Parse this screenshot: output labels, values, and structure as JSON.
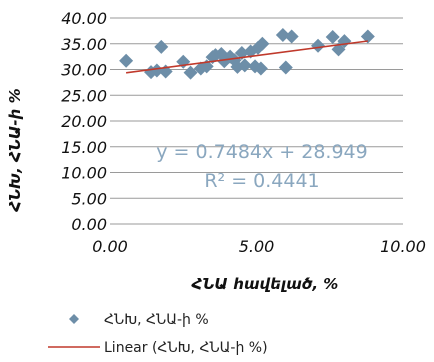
{
  "chart_data": {
    "type": "scatter",
    "xlabel": "ՀՆԱ hավելած, %",
    "ylabel": "ՀՆԽ, ՀՆԱ-ի %",
    "xlim": [
      0,
      10
    ],
    "ylim": [
      0,
      40
    ],
    "x_ticks": [
      "0.00",
      "5.00",
      "10.00"
    ],
    "y_ticks": [
      "0.00",
      "5.00",
      "10.00",
      "15.00",
      "20.00",
      "25.00",
      "30.00",
      "35.00",
      "40.00"
    ],
    "grid": "horizontal",
    "series": [
      {
        "name": "ՀՆԽ, ՀՆԱ-ի %",
        "color": "#6d8ea8",
        "marker": "diamond",
        "x": [
          0.55,
          1.4,
          1.6,
          1.75,
          1.9,
          2.5,
          2.75,
          3.1,
          3.3,
          3.5,
          3.6,
          3.8,
          3.9,
          4.1,
          4.25,
          4.35,
          4.5,
          4.6,
          4.8,
          4.95,
          5.05,
          5.15,
          5.2,
          5.9,
          6.0,
          6.2,
          7.1,
          7.6,
          7.8,
          8.0,
          8.8
        ],
        "y": [
          31.7,
          29.5,
          29.8,
          34.4,
          29.6,
          31.5,
          29.4,
          30.2,
          30.6,
          32.4,
          32.8,
          33.0,
          31.6,
          32.5,
          31.8,
          30.5,
          33.2,
          30.8,
          33.5,
          30.6,
          34.2,
          30.2,
          35.0,
          36.7,
          30.4,
          36.4,
          34.6,
          36.3,
          33.9,
          35.5,
          36.4
        ]
      }
    ],
    "trendline": {
      "name": "Linear (ՀՆԽ, ՀՆԱ-ի %)",
      "color": "#c0392b",
      "slope": 0.7484,
      "intercept": 28.949,
      "x_range": [
        0.55,
        8.8
      ],
      "equation": "y = 0.7484x + 28.949",
      "r_squared": "R² = 0.4441"
    },
    "legend_position": "bottom"
  }
}
